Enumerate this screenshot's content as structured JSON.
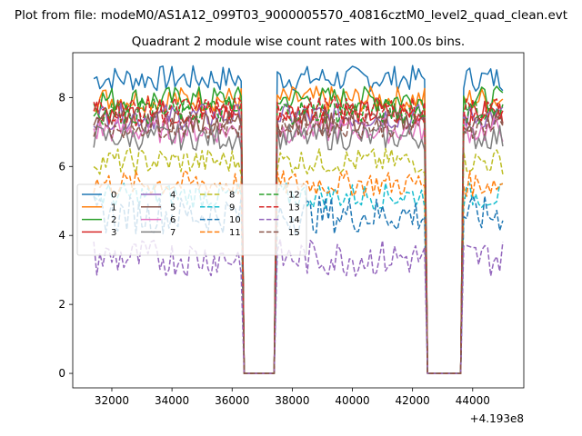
{
  "suptitle": "Plot from file: modeM0/AS1A12_099T03_9000005570_40816cztM0_level2_quad_clean.evt",
  "chart_data": {
    "type": "line",
    "title": "Quadrant 2 module wise count rates with 100.0s bins.",
    "xlabel": "",
    "ylabel": "",
    "x_offset_label": "+4.193e8",
    "x_range": [
      31400,
      45000
    ],
    "xlim": [
      30700,
      45700
    ],
    "ylim": [
      -0.42,
      9.3
    ],
    "x_ticks": [
      32000,
      34000,
      36000,
      38000,
      40000,
      42000,
      44000
    ],
    "x_tick_labels": [
      "32000",
      "34000",
      "36000",
      "38000",
      "40000",
      "42000",
      "44000"
    ],
    "y_ticks": [
      0,
      2,
      4,
      6,
      8
    ],
    "y_tick_labels": [
      "0",
      "2",
      "4",
      "6",
      "8"
    ],
    "grid": false,
    "legend_placement": "center-left",
    "data_gaps": [
      {
        "from": 36300,
        "to": 37500,
        "value": 0
      },
      {
        "from": 42400,
        "to": 43700,
        "value": 0
      }
    ],
    "series": [
      {
        "name": "0",
        "color": "#1f77b4",
        "dash": "solid",
        "level": 8.55
      },
      {
        "name": "1",
        "color": "#ff7f0e",
        "dash": "solid",
        "level": 7.95
      },
      {
        "name": "2",
        "color": "#2ca02c",
        "dash": "solid",
        "level": 7.95
      },
      {
        "name": "3",
        "color": "#d62728",
        "dash": "solid",
        "level": 7.55
      },
      {
        "name": "4",
        "color": "#9467bd",
        "dash": "solid",
        "level": 7.45
      },
      {
        "name": "5",
        "color": "#8c564b",
        "dash": "solid",
        "level": 7.3
      },
      {
        "name": "6",
        "color": "#e377c2",
        "dash": "solid",
        "level": 7.05
      },
      {
        "name": "7",
        "color": "#7f7f7f",
        "dash": "solid",
        "level": 6.85
      },
      {
        "name": "8",
        "color": "#bcbd22",
        "dash": "dashed",
        "level": 6.15
      },
      {
        "name": "9",
        "color": "#17becf",
        "dash": "dashed",
        "level": 5.15
      },
      {
        "name": "10",
        "color": "#1f77b4",
        "dash": "dashed",
        "level": 4.6
      },
      {
        "name": "11",
        "color": "#ff7f0e",
        "dash": "dashed",
        "level": 5.5
      },
      {
        "name": "12",
        "color": "#2ca02c",
        "dash": "dashed",
        "level": 7.6
      },
      {
        "name": "13",
        "color": "#d62728",
        "dash": "dashed",
        "level": 7.65
      },
      {
        "name": "14",
        "color": "#9467bd",
        "dash": "dashed",
        "level": 3.35
      },
      {
        "name": "15",
        "color": "#8c564b",
        "dash": "dashed",
        "level": 7.2
      }
    ]
  }
}
